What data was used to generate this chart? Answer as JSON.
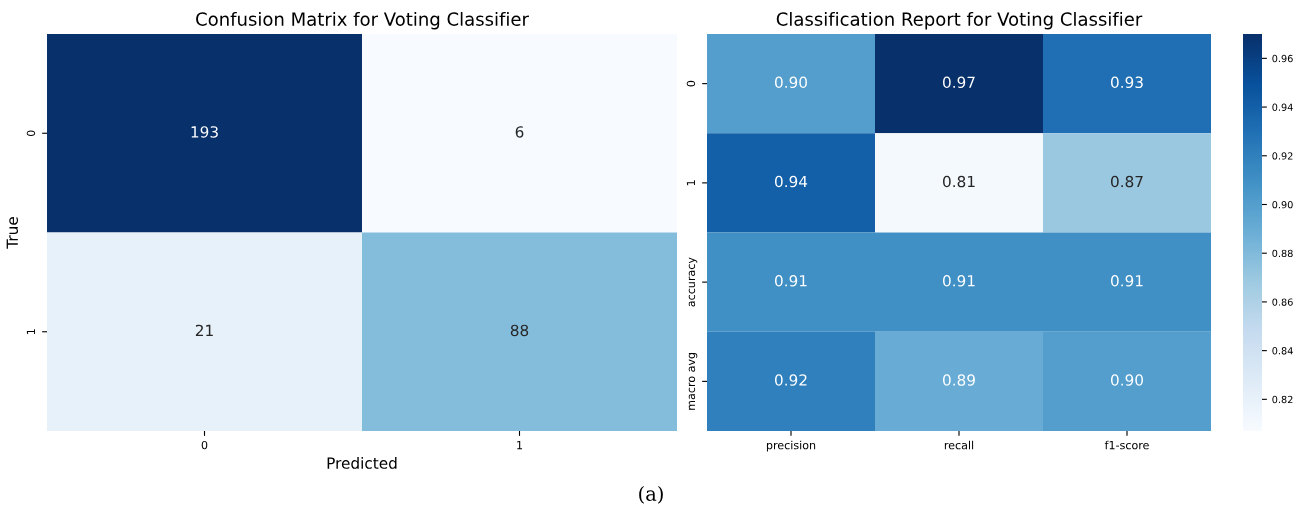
{
  "chart_data": [
    {
      "type": "heatmap",
      "title": "Confusion Matrix for Voting Classifier",
      "xlabel": "Predicted",
      "ylabel": "True",
      "categories": [
        "0",
        "1"
      ],
      "y_categories": [
        "0",
        "1"
      ],
      "cells": [
        [
          193,
          6
        ],
        [
          21,
          88
        ]
      ],
      "data_labels": true,
      "annotations": [
        "(a)"
      ]
    },
    {
      "type": "heatmap",
      "title": "Classification Report for Voting Classifier",
      "categories": [
        "precision",
        "recall",
        "f1-score"
      ],
      "y_categories": [
        "0",
        "1",
        "accuracy",
        "macro avg"
      ],
      "cells": [
        [
          0.9,
          0.97,
          0.93
        ],
        [
          0.94,
          0.81,
          0.87
        ],
        [
          0.91,
          0.91,
          0.91
        ],
        [
          0.92,
          0.89,
          0.9
        ]
      ],
      "cell_labels": [
        [
          "0.90",
          "0.97",
          "0.93"
        ],
        [
          "0.94",
          "0.81",
          "0.87"
        ],
        [
          "0.91",
          "0.91",
          "0.91"
        ],
        [
          "0.92",
          "0.89",
          "0.90"
        ]
      ],
      "clim": [
        0.807,
        0.97
      ],
      "cticks": [
        0.82,
        0.84,
        0.86,
        0.88,
        {
          "value": 0.9,
          "label": "0.90"
        },
        0.92,
        0.94,
        0.96
      ]
    }
  ]
}
